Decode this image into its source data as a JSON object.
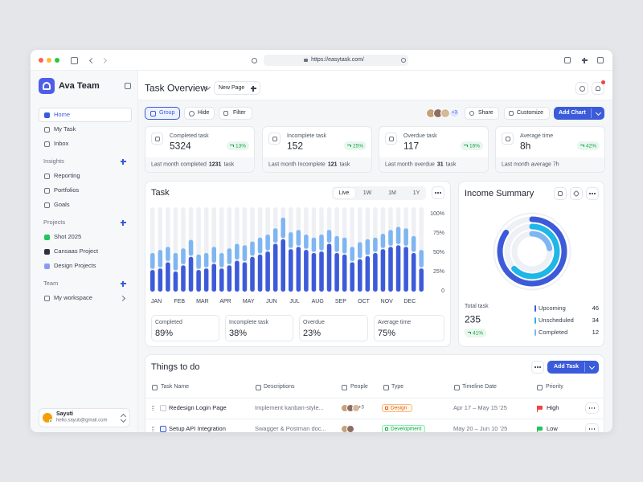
{
  "browser": {
    "url": "https://easytask.com/"
  },
  "sidebar": {
    "team": "Ava Team",
    "nav": [
      "Home",
      "My Task",
      "Inbox"
    ],
    "sections": [
      {
        "title": "Insights",
        "items": [
          "Reporting",
          "Portfolios",
          "Goals"
        ]
      },
      {
        "title": "Projects",
        "items": [
          "Shot 2025",
          "Cansaas Project",
          "Design Projects"
        ]
      },
      {
        "title": "Team",
        "items": [
          "My workspace"
        ]
      }
    ],
    "user": {
      "name": "Sayuti",
      "email": "hello.sayuti@gmail.com"
    }
  },
  "header": {
    "title": "Task Overview",
    "new_page": "New Page"
  },
  "toolbar": {
    "group": "Group",
    "hide": "Hide",
    "filter": "Filter",
    "more_people": "+3",
    "share": "Share",
    "customize": "Customize",
    "add_chart": "Add Chart"
  },
  "stats": [
    {
      "label": "Completed task",
      "value": "5324",
      "change": "13%",
      "footer": [
        "Last month completed",
        "1231",
        "task"
      ]
    },
    {
      "label": "Incomplete task",
      "value": "152",
      "change": "25%",
      "footer": [
        "Last month Incomplete",
        "121",
        "task"
      ]
    },
    {
      "label": "Overdue task",
      "value": "117",
      "change": "16%",
      "footer": [
        "Last month overdue",
        "31",
        "task"
      ]
    },
    {
      "label": "Average time",
      "value": "8h",
      "change": "42%",
      "footer": [
        "Last month average 7h"
      ]
    }
  ],
  "task_panel": {
    "title": "Task",
    "tabs": [
      "Live",
      "1W",
      "1M",
      "1Y"
    ],
    "summary": [
      {
        "label": "Completed",
        "value": "89%"
      },
      {
        "label": "Incomplete task",
        "value": "38%"
      },
      {
        "label": "Overdue",
        "value": "23%"
      },
      {
        "label": "Average time",
        "value": "75%"
      }
    ]
  },
  "chart_data": {
    "type": "bar",
    "stacked": true,
    "categories": [
      "JAN",
      null,
      null,
      "FEB",
      null,
      null,
      "MAR",
      null,
      null,
      "APR",
      null,
      null,
      "MAY",
      null,
      null,
      "JUN",
      null,
      null,
      "JUL",
      null,
      null,
      "AUG",
      null,
      null,
      "SEP",
      null,
      null,
      "OCT",
      null,
      null,
      "NOV",
      null,
      null,
      "DEC",
      null,
      null
    ],
    "series": [
      {
        "color": "#3d5bd9",
        "values": [
          28,
          30,
          38,
          26,
          34,
          45,
          28,
          30,
          36,
          30,
          34,
          40,
          38,
          45,
          48,
          52,
          62,
          68,
          55,
          58,
          54,
          50,
          52,
          62,
          50,
          48,
          38,
          42,
          46,
          50,
          55,
          58,
          60,
          58,
          50,
          30
        ]
      },
      {
        "color": "#7fb6f2",
        "values": [
          22,
          24,
          20,
          24,
          22,
          22,
          20,
          20,
          22,
          20,
          22,
          22,
          22,
          20,
          22,
          22,
          20,
          28,
          22,
          22,
          20,
          20,
          22,
          18,
          22,
          22,
          20,
          22,
          22,
          20,
          20,
          22,
          24,
          24,
          22,
          24
        ]
      }
    ],
    "track_color": "#eef0f4",
    "ylim": [
      0,
      100
    ],
    "yticks": [
      0,
      {
        "value": 25,
        "label": "25%"
      },
      {
        "value": 50,
        "label": "50%"
      },
      {
        "value": 75,
        "label": "75%"
      },
      {
        "value": 100,
        "label": "100%"
      }
    ]
  },
  "income": {
    "title": "Income Summary",
    "total_label": "Total task",
    "total": "235",
    "change": "41%",
    "legend": [
      {
        "name": "Upcoming",
        "value": 46,
        "color": "#3d5bd9"
      },
      {
        "name": "Unscheduled",
        "value": 34,
        "color": "#1fb6e8"
      },
      {
        "name": "Completed",
        "value": 12,
        "color": "#7fb6f2"
      }
    ]
  },
  "todo": {
    "title": "Things to do",
    "add": "Add Task",
    "columns": [
      "Task Name",
      "Descriptions",
      "People",
      "Type",
      "Timeline Date",
      "Priority"
    ],
    "rows": [
      {
        "task": "Redesign Login Page",
        "description": "Implement kanban-style...",
        "people_more": "+3",
        "type": "Design",
        "timeline": "Apr 17 – May 15 '25",
        "priority": "High"
      },
      {
        "task": "Setup API Integration",
        "description": "Swagger & Postman doc...",
        "type": "Development",
        "timeline": "May 20 – Jun 10 '25",
        "priority": "Low"
      }
    ]
  }
}
